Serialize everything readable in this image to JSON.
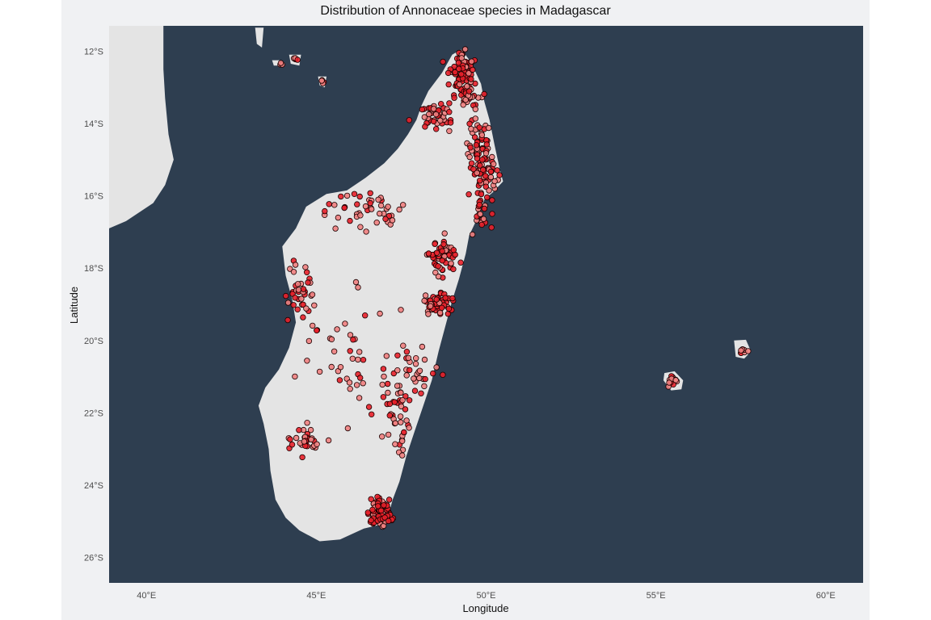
{
  "title": "Distribution of Annonaceae species in Madagascar",
  "axes": {
    "xlabel": "Longitude",
    "ylabel": "Latitude",
    "xlim": [
      38.9,
      61.1
    ],
    "ylim": [
      -26.7,
      -11.3
    ],
    "xticks": [
      {
        "value": 40,
        "label": "40°E"
      },
      {
        "value": 45,
        "label": "45°E"
      },
      {
        "value": 50,
        "label": "50°E"
      },
      {
        "value": 55,
        "label": "55°E"
      },
      {
        "value": 60,
        "label": "60°E"
      }
    ],
    "yticks": [
      {
        "value": -12,
        "label": "12°S"
      },
      {
        "value": -14,
        "label": "14°S"
      },
      {
        "value": -16,
        "label": "16°S"
      },
      {
        "value": -18,
        "label": "18°S"
      },
      {
        "value": -20,
        "label": "20°S"
      },
      {
        "value": -22,
        "label": "22°S"
      },
      {
        "value": -24,
        "label": "24°S"
      },
      {
        "value": -26,
        "label": "26°S"
      }
    ]
  },
  "colors": {
    "ocean": "#2e3e50",
    "land": "#e4e4e4",
    "point_fill_dark": "#e8202a",
    "point_fill_light": "#f08080",
    "point_stroke": "#1a0000",
    "panel_background": "#f0f1f3"
  },
  "land": {
    "madagascar": [
      [
        49.27,
        -11.95
      ],
      [
        49.55,
        -12.3
      ],
      [
        49.85,
        -12.9
      ],
      [
        49.95,
        -13.4
      ],
      [
        50.1,
        -13.9
      ],
      [
        50.25,
        -14.6
      ],
      [
        50.4,
        -15.25
      ],
      [
        50.5,
        -15.6
      ],
      [
        50.2,
        -15.9
      ],
      [
        49.95,
        -16.1
      ],
      [
        49.75,
        -16.6
      ],
      [
        49.5,
        -17.1
      ],
      [
        49.4,
        -17.6
      ],
      [
        49.2,
        -18.3
      ],
      [
        49.0,
        -18.9
      ],
      [
        48.8,
        -19.6
      ],
      [
        48.6,
        -20.3
      ],
      [
        48.4,
        -21.1
      ],
      [
        48.15,
        -21.8
      ],
      [
        47.9,
        -22.5
      ],
      [
        47.65,
        -23.2
      ],
      [
        47.45,
        -23.9
      ],
      [
        47.25,
        -24.4
      ],
      [
        47.1,
        -24.9
      ],
      [
        46.85,
        -25.1
      ],
      [
        46.4,
        -25.2
      ],
      [
        45.7,
        -25.5
      ],
      [
        45.1,
        -25.55
      ],
      [
        44.5,
        -25.25
      ],
      [
        44.1,
        -24.9
      ],
      [
        43.8,
        -24.4
      ],
      [
        43.65,
        -23.6
      ],
      [
        43.6,
        -23.0
      ],
      [
        43.45,
        -22.3
      ],
      [
        43.3,
        -21.8
      ],
      [
        43.5,
        -21.3
      ],
      [
        43.9,
        -20.8
      ],
      [
        44.2,
        -20.2
      ],
      [
        44.4,
        -19.5
      ],
      [
        44.3,
        -18.9
      ],
      [
        44.1,
        -18.2
      ],
      [
        44.0,
        -17.4
      ],
      [
        44.4,
        -16.9
      ],
      [
        44.7,
        -16.3
      ],
      [
        45.3,
        -15.95
      ],
      [
        45.9,
        -15.85
      ],
      [
        46.45,
        -15.5
      ],
      [
        47.0,
        -15.1
      ],
      [
        47.4,
        -14.7
      ],
      [
        47.7,
        -14.3
      ],
      [
        47.95,
        -13.9
      ],
      [
        48.1,
        -13.5
      ],
      [
        48.3,
        -13.1
      ],
      [
        48.7,
        -12.6
      ],
      [
        49.0,
        -12.1
      ]
    ],
    "africa": [
      [
        38.9,
        -11.3
      ],
      [
        40.5,
        -11.3
      ],
      [
        40.5,
        -12.5
      ],
      [
        40.55,
        -13.3
      ],
      [
        40.65,
        -14.3
      ],
      [
        40.8,
        -15.0
      ],
      [
        40.55,
        -15.7
      ],
      [
        40.2,
        -16.2
      ],
      [
        39.4,
        -16.7
      ],
      [
        38.9,
        -16.9
      ]
    ],
    "islands": [
      [
        [
          55.25,
          -20.9
        ],
        [
          55.55,
          -20.85
        ],
        [
          55.8,
          -21.1
        ],
        [
          55.75,
          -21.35
        ],
        [
          55.45,
          -21.38
        ],
        [
          55.22,
          -21.1
        ]
      ],
      [
        [
          57.3,
          -20.0
        ],
        [
          57.65,
          -19.98
        ],
        [
          57.8,
          -20.3
        ],
        [
          57.6,
          -20.5
        ],
        [
          57.35,
          -20.45
        ]
      ],
      [
        [
          43.2,
          -11.35
        ],
        [
          43.45,
          -11.35
        ],
        [
          43.4,
          -11.9
        ],
        [
          43.25,
          -11.8
        ]
      ],
      [
        [
          44.2,
          -12.1
        ],
        [
          44.55,
          -12.1
        ],
        [
          44.5,
          -12.4
        ],
        [
          44.25,
          -12.35
        ]
      ],
      [
        [
          45.05,
          -12.7
        ],
        [
          45.3,
          -12.7
        ],
        [
          45.25,
          -13.0
        ],
        [
          45.1,
          -12.95
        ]
      ],
      [
        [
          43.7,
          -12.25
        ],
        [
          43.95,
          -12.25
        ],
        [
          43.9,
          -12.4
        ],
        [
          43.75,
          -12.4
        ]
      ]
    ]
  },
  "occurrence_clusters": [
    {
      "center": [
        49.3,
        -12.6
      ],
      "spread": [
        0.3,
        0.5
      ],
      "count": 90,
      "intensity": 0.8
    },
    {
      "center": [
        49.5,
        -13.3
      ],
      "spread": [
        0.3,
        0.3
      ],
      "count": 25,
      "intensity": 0.6
    },
    {
      "center": [
        48.6,
        -13.8
      ],
      "spread": [
        0.5,
        0.3
      ],
      "count": 45,
      "intensity": 0.6
    },
    {
      "center": [
        49.8,
        -14.5
      ],
      "spread": [
        0.3,
        0.5
      ],
      "count": 45,
      "intensity": 0.6
    },
    {
      "center": [
        50.0,
        -15.4
      ],
      "spread": [
        0.35,
        0.4
      ],
      "count": 55,
      "intensity": 0.6
    },
    {
      "center": [
        49.8,
        -16.5
      ],
      "spread": [
        0.3,
        0.5
      ],
      "count": 25,
      "intensity": 0.5
    },
    {
      "center": [
        48.7,
        -17.7
      ],
      "spread": [
        0.4,
        0.45
      ],
      "count": 60,
      "intensity": 0.6
    },
    {
      "center": [
        48.6,
        -19.0
      ],
      "spread": [
        0.35,
        0.25
      ],
      "count": 55,
      "intensity": 0.7
    },
    {
      "center": [
        46.9,
        -24.7
      ],
      "spread": [
        0.3,
        0.3
      ],
      "count": 85,
      "intensity": 0.85
    },
    {
      "center": [
        47.4,
        -22.0
      ],
      "spread": [
        0.4,
        1.1
      ],
      "count": 45,
      "intensity": 0.5
    },
    {
      "center": [
        48.0,
        -20.8
      ],
      "spread": [
        0.5,
        0.6
      ],
      "count": 25,
      "intensity": 0.4
    },
    {
      "center": [
        46.5,
        -16.4
      ],
      "spread": [
        1.0,
        0.4
      ],
      "count": 45,
      "intensity": 0.3
    },
    {
      "center": [
        44.6,
        -18.7
      ],
      "spread": [
        0.4,
        0.7
      ],
      "count": 40,
      "intensity": 0.4
    },
    {
      "center": [
        44.7,
        -22.8
      ],
      "spread": [
        0.4,
        0.3
      ],
      "count": 30,
      "intensity": 0.4
    },
    {
      "center": [
        46.0,
        -20.5
      ],
      "spread": [
        1.2,
        1.6
      ],
      "count": 45,
      "intensity": 0.15
    },
    {
      "center": [
        55.5,
        -21.1
      ],
      "spread": [
        0.12,
        0.12
      ],
      "count": 12,
      "intensity": 0.3
    },
    {
      "center": [
        57.6,
        -20.25
      ],
      "spread": [
        0.08,
        0.08
      ],
      "count": 8,
      "intensity": 0.3
    },
    {
      "center": [
        44.4,
        -12.2
      ],
      "spread": [
        0.05,
        0.05
      ],
      "count": 4,
      "intensity": 0.3
    },
    {
      "center": [
        45.2,
        -12.85
      ],
      "spread": [
        0.05,
        0.05
      ],
      "count": 4,
      "intensity": 0.3
    },
    {
      "center": [
        43.95,
        -12.35
      ],
      "spread": [
        0.05,
        0.03
      ],
      "count": 3,
      "intensity": 0.3
    }
  ]
}
